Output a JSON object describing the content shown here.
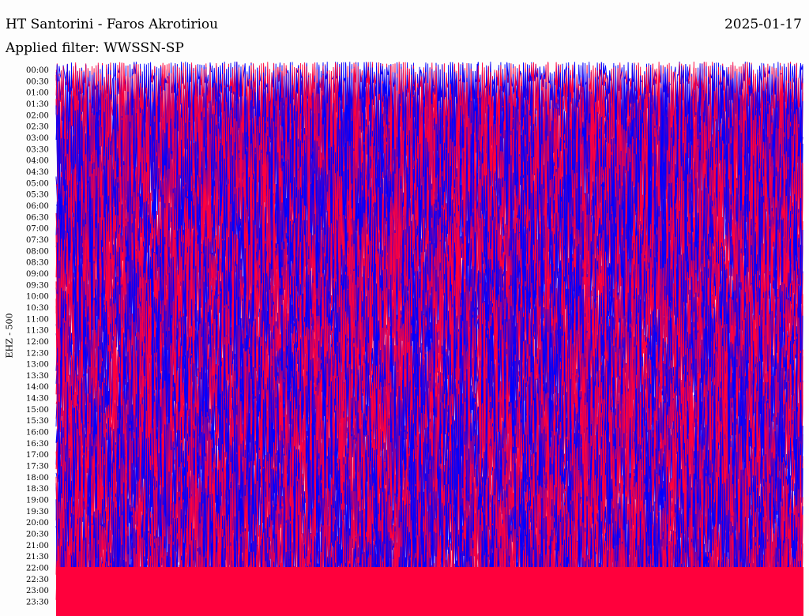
{
  "header": {
    "station": "HT Santorini - Faros Akrotiriou",
    "date": "2025-01-17",
    "filter": "Applied filter: WWSSN-SP",
    "channel": "EHZ - 500"
  },
  "colors": {
    "trace_a": "#0000ff",
    "trace_b": "#ff003c",
    "background": "#fdfdfd"
  },
  "chart_data": {
    "type": "helicorder",
    "ylabel": "EHZ - 500",
    "row_labels": [
      "00:00",
      "00:30",
      "01:00",
      "01:30",
      "02:00",
      "02:30",
      "03:00",
      "03:30",
      "04:00",
      "04:30",
      "05:00",
      "05:30",
      "06:00",
      "06:30",
      "07:00",
      "07:30",
      "08:00",
      "08:30",
      "09:00",
      "09:30",
      "10:00",
      "10:30",
      "11:00",
      "11:30",
      "12:00",
      "12:30",
      "13:00",
      "13:30",
      "14:00",
      "14:30",
      "15:00",
      "15:30",
      "16:00",
      "16:30",
      "17:00",
      "17:30",
      "18:00",
      "18:30",
      "19:00",
      "19:30",
      "20:00",
      "20:30",
      "21:00",
      "21:30",
      "22:00",
      "22:30",
      "23:00",
      "23:30"
    ],
    "rows_per_day": 48,
    "minutes_per_row": 30,
    "alternating_colors": [
      "#0000ff",
      "#ff003c"
    ],
    "grid": false
  }
}
